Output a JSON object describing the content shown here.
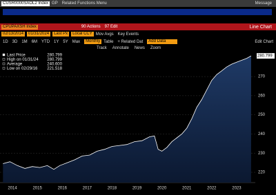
{
  "ui": {
    "ticker_field": "CUSR0000SAOL2 Index",
    "function_field": "GP",
    "related_menu": "Related Functions Menu",
    "message": "Message",
    "security": "CPUPAXSH Index",
    "actions": "90 Actions",
    "edit": "97 Edit",
    "chart_kind": "Line Chart",
    "start_date": "02/13/2014",
    "end_date": "01/31/2024",
    "field": "Last Px",
    "currency": "Local CCY",
    "mov_avgs": "Mov Avgs",
    "key_events": "Key Events",
    "ranges": [
      "1D",
      "3D",
      "1M",
      "6M",
      "YTD",
      "1Y",
      "5Y",
      "Max"
    ],
    "periodicity": "Monthly",
    "table": "Table",
    "related_data": "+ Related Dat",
    "add_data": "Add Data",
    "edit_chart": "Edit Chart",
    "tools": [
      "Track",
      "Annotate",
      "News",
      "Zoom"
    ]
  },
  "chart_data": {
    "type": "area",
    "stats": [
      {
        "label": "Last Price",
        "value": "280.799"
      },
      {
        "label": "High on 01/31/24",
        "value": "280.799"
      },
      {
        "label": "Average",
        "value": "240.600"
      },
      {
        "label": "Low on 02/29/16",
        "value": "221.518"
      }
    ],
    "x": [
      2014.12,
      2014.4,
      2014.7,
      2015.0,
      2015.3,
      2015.6,
      2015.9,
      2016.16,
      2016.4,
      2016.7,
      2017.0,
      2017.3,
      2017.6,
      2017.9,
      2018.2,
      2018.5,
      2018.8,
      2019.1,
      2019.4,
      2019.7,
      2020.0,
      2020.2,
      2020.35,
      2020.5,
      2020.7,
      2020.9,
      2021.1,
      2021.3,
      2021.5,
      2021.7,
      2021.9,
      2022.1,
      2022.3,
      2022.5,
      2022.7,
      2022.9,
      2023.1,
      2023.3,
      2023.5,
      2023.7,
      2023.9,
      2024.08
    ],
    "series": [
      {
        "name": "Last Price",
        "color": "#ffffff",
        "values": [
          224.5,
          225.5,
          223.5,
          222.0,
          223.0,
          222.5,
          223.5,
          221.518,
          223.5,
          225,
          226.5,
          228.5,
          229,
          231,
          232,
          233.5,
          234,
          234.5,
          236,
          236.5,
          238.5,
          239,
          232,
          231,
          233,
          236,
          238,
          240,
          243,
          248,
          254,
          258,
          263,
          268,
          271,
          273,
          275,
          276.5,
          277.5,
          278.5,
          279.5,
          280.799
        ]
      }
    ],
    "xlim": [
      2014,
      2024.25
    ],
    "xticks": [
      {
        "value": 2014.5,
        "label": "2014"
      },
      {
        "value": 2015.5,
        "label": "2015"
      },
      {
        "value": 2016.5,
        "label": "2016"
      },
      {
        "value": 2017.5,
        "label": "2017"
      },
      {
        "value": 2018.5,
        "label": "2018"
      },
      {
        "value": 2019.5,
        "label": "2019"
      },
      {
        "value": 2020.5,
        "label": "2020"
      },
      {
        "value": 2021.5,
        "label": "2021"
      },
      {
        "value": 2022.5,
        "label": "2022"
      },
      {
        "value": 2023.5,
        "label": "2023"
      }
    ],
    "ylim": [
      214.6,
      283
    ],
    "yticks": [
      220,
      230,
      240,
      250,
      260,
      270
    ],
    "grid": true
  }
}
